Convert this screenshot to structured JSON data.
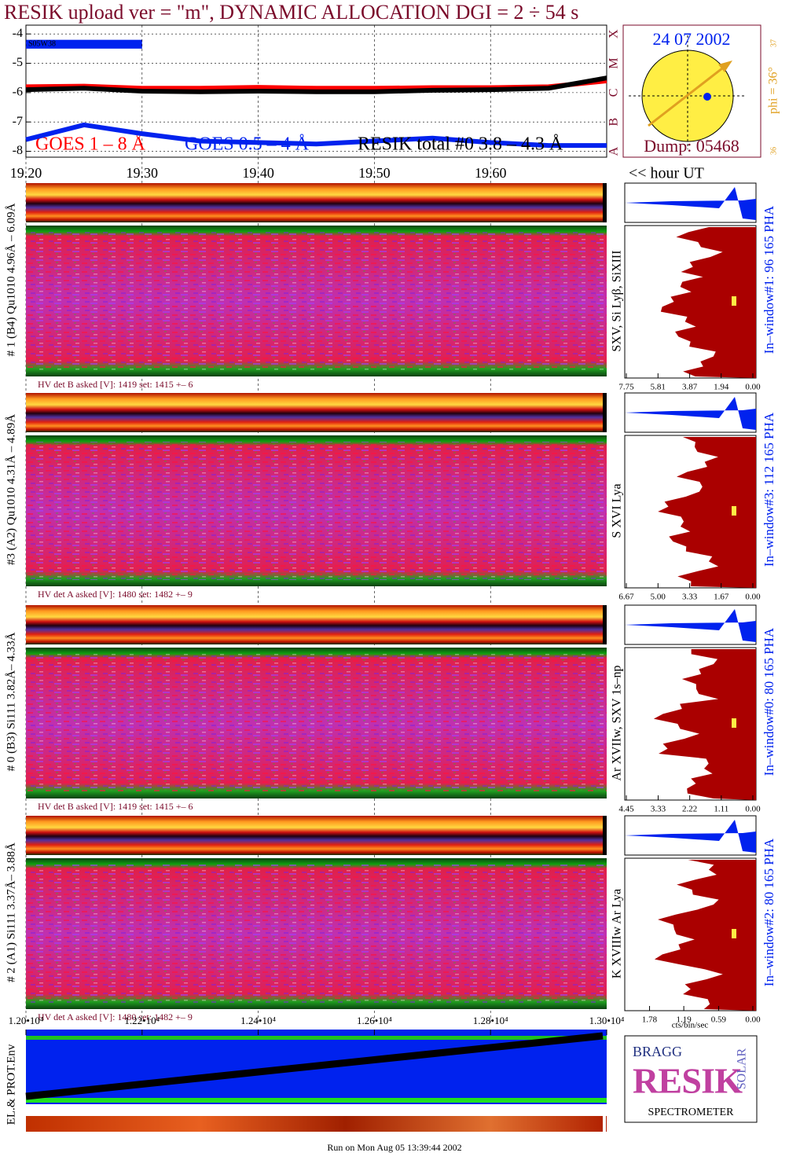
{
  "title": "RESIK upload ver = \"m\", DYNAMIC ALLOCATION  DGI =   2 ÷  54 s",
  "goes": {
    "type": "line",
    "x": [
      19.2,
      19.25,
      19.3,
      19.35,
      19.4,
      19.45,
      19.5,
      19.55,
      19.6,
      19.65,
      19.7
    ],
    "xlim": [
      19.2,
      19.7
    ],
    "xticks": [
      {
        "value": 19.2,
        "label": "19.20"
      },
      {
        "value": 19.3,
        "label": "19.30"
      },
      {
        "value": 19.4,
        "label": "19.40"
      },
      {
        "value": 19.5,
        "label": "19.50"
      },
      {
        "value": 19.6,
        "label": "19.60"
      }
    ],
    "x_label": "<< hour UT",
    "ylim": [
      -8.2,
      -3.7
    ],
    "yticks": [
      -4,
      -5,
      -6,
      -7,
      -8
    ],
    "class_labels": [
      "X",
      "M",
      "C",
      "B",
      "A"
    ],
    "marker_label": "S05W38",
    "series": [
      {
        "name": "GOES 1 – 8 Å",
        "color": "#ff0000",
        "values": [
          -5.8,
          -5.78,
          -5.85,
          -5.85,
          -5.82,
          -5.85,
          -5.85,
          -5.83,
          -5.83,
          -5.8,
          -5.6
        ]
      },
      {
        "name": "GOES 0.5 – 4 Å",
        "color": "#0022ee",
        "values": [
          -7.6,
          -7.1,
          -7.4,
          -7.65,
          -7.7,
          -7.75,
          -7.65,
          -7.55,
          -7.7,
          -7.8,
          -7.8
        ]
      },
      {
        "name": "RESIK total #0  3.8 – 4.3 Å",
        "color": "#000000",
        "values": [
          -5.9,
          -5.85,
          -5.95,
          -5.97,
          -5.95,
          -5.97,
          -5.97,
          -5.92,
          -5.9,
          -5.85,
          -5.5
        ]
      }
    ]
  },
  "sun": {
    "date": "24 07 2002",
    "dump": "Dump: 05468",
    "phi": "phi = 36°",
    "scale_top": "37",
    "scale_bottom": "36"
  },
  "channels": [
    {
      "label": "# 1 (B4) Qu1010 4.96Å – 6.09Å",
      "lines": "SXV, Si Lyβ, SiXIII",
      "hv": "HV det B asked [V]:  1419 set:  1415 +–    6",
      "window": "In–window#1:   96 165  PHA",
      "pha_xlim": [
        7.75,
        0
      ],
      "pha_ticks": [
        7.75,
        5.81,
        3.87,
        1.94,
        {
          "value": 0,
          "label": "0.00"
        }
      ]
    },
    {
      "label": "#3 (A2) Qu1010  4.31Å – 4.89Å",
      "lines": "S XVI Lya",
      "hv": "HV det A asked [V]:  1480 set:  1482 +–    9",
      "window": "In–window#3:   112 165  PHA",
      "pha_xlim": [
        6.67,
        0
      ],
      "pha_ticks": [
        6.67,
        {
          "value": 5,
          "label": "5.00"
        },
        3.33,
        1.67,
        {
          "value": 0,
          "label": "0.00"
        }
      ]
    },
    {
      "label": "# 0 (B3) Si111  3.82Å– 4.33Å",
      "lines": "Ar XVIIw,  SXV 1s–np",
      "hv": "HV det B asked [V]:  1419 set:  1415 +–    6",
      "window": "In–window#0:   80 165  PHA",
      "pha_xlim": [
        4.45,
        0
      ],
      "pha_ticks": [
        4.45,
        3.33,
        2.22,
        1.11,
        {
          "value": 0,
          "label": "0.00"
        }
      ]
    },
    {
      "label": "# 2 (A1) Si111  3.37Å– 3.88Å",
      "lines": "K XVIIIw  Ar Lya",
      "hv": "HV det A asked [V]:  1480 set:  1482 +–    9",
      "window": "In–window#2:   80 165  PHA",
      "pha_xlim": [
        2.18,
        0
      ],
      "pha_ticks": [
        1.78,
        1.19,
        0.59,
        {
          "value": 0,
          "label": "0.00"
        }
      ]
    }
  ],
  "pha_unit": "cts/bin/sec",
  "env": {
    "label": "EL.& PROT.Env",
    "xlim": [
      12000,
      13000
    ],
    "xticks": [
      {
        "value": 12000,
        "label": "1.20•10⁴"
      },
      {
        "value": 12200,
        "label": "1.22•10⁴"
      },
      {
        "value": 12400,
        "label": "1.24•10⁴"
      },
      {
        "value": 12600,
        "label": "1.26•10⁴"
      },
      {
        "value": 12800,
        "label": "1.28•10⁴"
      },
      {
        "value": 13000,
        "label": "1.30•10⁴"
      }
    ]
  },
  "logo": {
    "top": "BRAGG",
    "middle": "RESIK",
    "side": "SOLAR",
    "bottom": "SPECTROMETER"
  },
  "footer": "Run on Mon Aug 05 13:39:44 2002"
}
